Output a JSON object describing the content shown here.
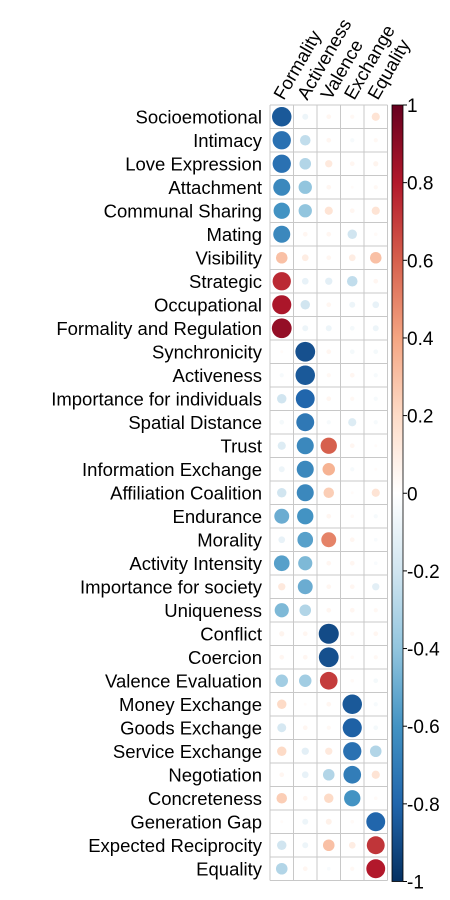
{
  "chart_data": {
    "type": "heatmap",
    "title": "",
    "columns": [
      "Formality",
      "Activeness",
      "Valence",
      "Exchange",
      "Equality"
    ],
    "rows": [
      "Socioemotional",
      "Intimacy",
      "Love Expression",
      "Attachment",
      "Communal Sharing",
      "Mating",
      "Visibility",
      "Strategic",
      "Occupational",
      "Formality and Regulation",
      "Synchronicity",
      "Activeness",
      "Importance for individuals",
      "Spatial Distance",
      "Trust",
      "Information Exchange",
      "Affiliation Coalition",
      "Endurance",
      "Morality",
      "Activity Intensity",
      "Importance for society",
      "Uniqueness",
      "Conflict",
      "Coercion",
      "Valence Evaluation",
      "Money Exchange",
      "Goods Exchange",
      "Service Exchange",
      "Negotiation",
      "Concreteness",
      "Generation Gap",
      "Expected Reciprocity",
      "Equality"
    ],
    "values": [
      [
        -0.85,
        -0.08,
        0.05,
        0.04,
        0.15
      ],
      [
        -0.75,
        -0.25,
        0.05,
        -0.04,
        0.04
      ],
      [
        -0.75,
        -0.3,
        0.12,
        0.05,
        0.06
      ],
      [
        -0.65,
        -0.4,
        0.05,
        0.02,
        0.04
      ],
      [
        -0.6,
        -0.4,
        0.15,
        0.05,
        0.15
      ],
      [
        -0.65,
        0.05,
        0.05,
        -0.2,
        0.03
      ],
      [
        0.3,
        0.1,
        0.05,
        0.1,
        0.3
      ],
      [
        0.75,
        -0.1,
        -0.12,
        -0.25,
        0.05
      ],
      [
        0.82,
        -0.2,
        0.05,
        -0.08,
        -0.1
      ],
      [
        0.88,
        -0.08,
        -0.08,
        -0.05,
        -0.08
      ],
      [
        0.02,
        -0.88,
        0.05,
        -0.05,
        -0.05
      ],
      [
        -0.04,
        -0.85,
        0.04,
        0.05,
        -0.04
      ],
      [
        -0.2,
        -0.8,
        0.05,
        0.04,
        -0.04
      ],
      [
        -0.05,
        -0.72,
        -0.04,
        -0.15,
        -0.04
      ],
      [
        -0.15,
        -0.65,
        0.6,
        0.05,
        0.02
      ],
      [
        -0.08,
        -0.65,
        0.35,
        -0.04,
        0.02
      ],
      [
        -0.2,
        -0.65,
        0.25,
        0.02,
        0.15
      ],
      [
        -0.5,
        -0.6,
        0.05,
        0.03,
        -0.04
      ],
      [
        -0.1,
        -0.55,
        0.5,
        0.05,
        -0.03
      ],
      [
        -0.55,
        -0.45,
        0.05,
        0.05,
        -0.03
      ],
      [
        0.12,
        -0.5,
        0.05,
        0.05,
        -0.12
      ],
      [
        -0.45,
        -0.3,
        0.05,
        0.05,
        0.04
      ],
      [
        0.06,
        0.05,
        -0.9,
        0.04,
        0.05
      ],
      [
        0.05,
        0.05,
        -0.88,
        0.03,
        0.04
      ],
      [
        -0.35,
        -0.35,
        0.7,
        0.03,
        -0.05
      ],
      [
        0.2,
        0.02,
        0.05,
        -0.85,
        -0.04
      ],
      [
        -0.18,
        0.05,
        0.04,
        -0.82,
        -0.05
      ],
      [
        0.2,
        -0.12,
        0.12,
        -0.75,
        -0.3
      ],
      [
        0.05,
        -0.1,
        -0.3,
        -0.7,
        0.15
      ],
      [
        0.25,
        0.05,
        0.2,
        -0.6,
        0.03
      ],
      [
        0.02,
        -0.08,
        0.08,
        0.03,
        -0.8
      ],
      [
        -0.2,
        -0.08,
        0.3,
        0.1,
        0.72
      ],
      [
        -0.3,
        0.05,
        -0.03,
        0.04,
        0.8
      ]
    ],
    "color_scale": {
      "min": -1,
      "max": 1,
      "ticks": [
        1,
        0.8,
        0.6,
        0.4,
        0.2,
        0,
        -0.2,
        -0.4,
        -0.6,
        -0.8,
        -1
      ],
      "tick_labels": [
        "1",
        "0.8",
        "0.6",
        "0.4",
        "0.2",
        "0",
        "-0.2",
        "-0.4",
        "-0.6",
        "-0.8",
        "-1"
      ],
      "colors": [
        "#053061",
        "#2166AC",
        "#4393C3",
        "#92C5DE",
        "#D1E5F0",
        "#FFFFFF",
        "#FDDBC7",
        "#F4A582",
        "#D6604D",
        "#B2182B",
        "#67001F"
      ],
      "legend_position": "right"
    },
    "grid": true,
    "grid_color": "#C8C8C8"
  }
}
